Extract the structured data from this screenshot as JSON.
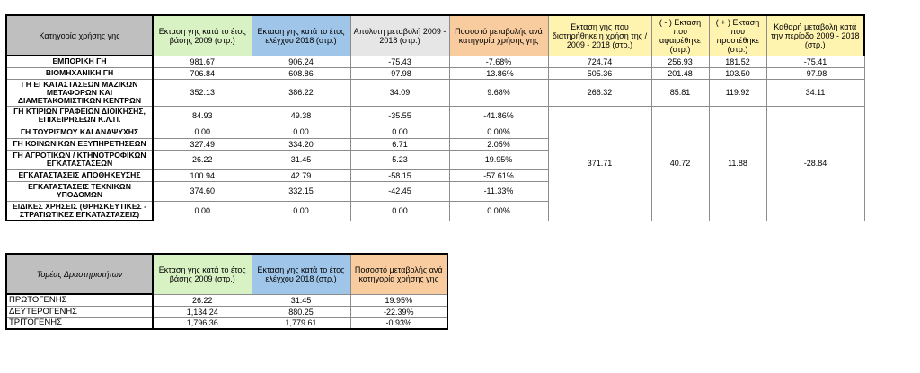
{
  "table1": {
    "headers": [
      "Κατηγορία χρήσης γης",
      "Εκταση γης κατά το έτος βάσης 2009 (στρ.)",
      "Εκταση γης κατά το έτος ελέγχου 2018 (στρ.)",
      "Απόλυτη μεταβολή 2009 - 2018 (στρ.)",
      "Ποσοστό μεταβολής ανά κατηγορία χρήσης γης",
      "Εκταση γης που διατηρήθηκε η χρήση της / 2009 - 2018 (στρ.)",
      "( - ) Εκταση που αφαιρέθηκε (στρ.)",
      "( + ) Εκταση που προστέθηκε (στρ.)",
      "Καθαρή μεταβολή κατά την περίοδο 2009 - 2018 (στρ.)"
    ],
    "rows": [
      {
        "cat": "ΕΜΠΟΡΙΚΗ ΓΗ",
        "v2009": "981.67",
        "v2018": "906.24",
        "abs": "-75.43",
        "pct": "-7.68%",
        "kept": "724.74",
        "minus": "256.93",
        "plus": "181.52",
        "net": "-75.41"
      },
      {
        "cat": "ΒΙΟΜΗΧΑΝΙΚΗ ΓΗ",
        "v2009": "706.84",
        "v2018": "608.86",
        "abs": "-97.98",
        "pct": "-13.86%",
        "kept": "505.36",
        "minus": "201.48",
        "plus": "103.50",
        "net": "-97.98"
      },
      {
        "cat": "ΓΗ ΕΓΚΑΤΑΣΤΑΣΕΩΝ ΜΑΖΙΚΩΝ ΜΕΤΑΦΟΡΩΝ ΚΑΙ ΔΙΑΜΕΤΑΚΟΜΙΣΤΙΚΩΝ ΚΕΝΤΡΩΝ",
        "v2009": "352.13",
        "v2018": "386.22",
        "abs": "34.09",
        "pct": "9.68%",
        "kept": "266.32",
        "minus": "85.81",
        "plus": "119.92",
        "net": "34.11"
      },
      {
        "cat": "ΓΗ ΚΤΙΡΙΩΝ ΓΡΑΦΕΙΩΝ ΔΙΟΙΚΗΣΗΣ, ΕΠΙΧΕΙΡΗΣΕΩΝ Κ.Λ.Π.",
        "v2009": "84.93",
        "v2018": "49.38",
        "abs": "-35.55",
        "pct": "-41.86%"
      },
      {
        "cat": "ΓΗ ΤΟΥΡΙΣΜΟΥ ΚΑΙ ΑΝΑΨΥΧΗΣ",
        "v2009": "0.00",
        "v2018": "0.00",
        "abs": "0.00",
        "pct": "0.00%"
      },
      {
        "cat": "ΓΗ ΚΟΙΝΩΝΙΚΩΝ ΕΞΥΠΗΡΕΤΗΣΕΩΝ",
        "v2009": "327.49",
        "v2018": "334.20",
        "abs": "6.71",
        "pct": "2.05%"
      },
      {
        "cat": "ΓΗ ΑΓΡΟΤΙΚΩΝ / ΚΤΗΝΟΤΡΟΦΙΚΩΝ ΕΓΚΑΤΑΣΤΑΣΕΩΝ",
        "v2009": "26.22",
        "v2018": "31.45",
        "abs": "5.23",
        "pct": "19.95%"
      },
      {
        "cat": "ΕΓΚΑΤΑΣΤΑΣΕΙΣ ΑΠΟΘΗΚΕΥΣΗΣ",
        "v2009": "100.94",
        "v2018": "42.79",
        "abs": "-58.15",
        "pct": "-57.61%"
      },
      {
        "cat": "ΕΓΚΑΤΑΣΤΑΣΕΙΣ ΤΕΧΝΙΚΩΝ ΥΠΟΔΟΜΩΝ",
        "v2009": "374.60",
        "v2018": "332.15",
        "abs": "-42.45",
        "pct": "-11.33%"
      },
      {
        "cat": "ΕΙΔΙΚΕΣ ΧΡΗΣΕΙΣ (ΘΡΗΣΚΕΥΤΙΚΕΣ - ΣΤΡΑΤΙΩΤΙΚΕΣ ΕΓΚΑΤΑΣΤΑΣΕΙΣ)",
        "v2009": "0.00",
        "v2018": "0.00",
        "abs": "0.00",
        "pct": "0.00%"
      }
    ],
    "merged": {
      "kept": "371.71",
      "minus": "40.72",
      "plus": "11.88",
      "net": "-28.84"
    }
  },
  "table2": {
    "headers": [
      "Τομέας Δραστηριοτήτων",
      "Εκταση γης κατά το έτος βάσης 2009 (στρ.)",
      "Εκταση γης κατά το έτος ελέγχου 2018 (στρ.)",
      "Ποσοστό μεταβολής ανά κατηγορία χρήσης γης"
    ],
    "rows": [
      {
        "sector": "ΠΡΩΤΟΓΕΝΗΣ",
        "v2009": "26.22",
        "v2018": "31.45",
        "pct": "19.95%"
      },
      {
        "sector": "ΔΕΥΤΕΡΟΓΕΝΗΣ",
        "v2009": "1,134.24",
        "v2018": "880.25",
        "pct": "-22.39%"
      },
      {
        "sector": "ΤΡΙΤΟΓΕΝΗΣ",
        "v2009": "1,796.36",
        "v2018": "1,779.61",
        "pct": "-0.93%"
      }
    ]
  }
}
